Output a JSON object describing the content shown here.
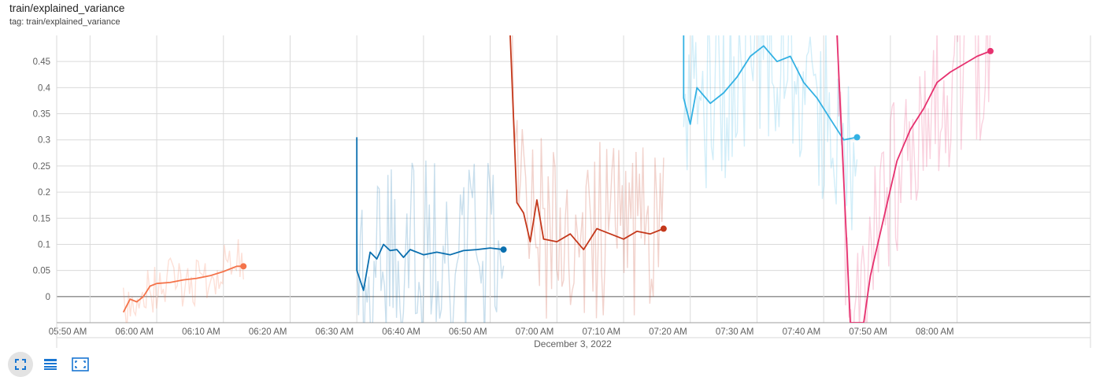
{
  "header": {
    "title": "train/explained_variance",
    "tag": "tag: train/explained_variance"
  },
  "toolbar": {
    "buttons": [
      {
        "icon": "fit-to-screen-icon",
        "active": true
      },
      {
        "icon": "data-table-icon",
        "active": false
      },
      {
        "icon": "expand-icon",
        "active": false
      }
    ]
  },
  "colors": {
    "grid": "#dadada",
    "axis": "#9e9e9e",
    "zero_line": "#8a8a8a"
  },
  "chart_data": {
    "type": "line",
    "title": "",
    "xlabel": "December 3, 2022",
    "ylabel": "",
    "grid": true,
    "legend": "none",
    "xlim": [
      "05:45 AM",
      "08:20 AM"
    ],
    "ylim": [
      -0.05,
      0.5
    ],
    "x_ticks": [
      "05:50 AM",
      "06:00 AM",
      "06:10 AM",
      "06:20 AM",
      "06:30 AM",
      "06:40 AM",
      "06:50 AM",
      "07:00 AM",
      "07:10 AM",
      "07:20 AM",
      "07:30 AM",
      "07:40 AM",
      "07:50 AM",
      "08:00 AM"
    ],
    "y_ticks": [
      "0",
      "0.05",
      "0.1",
      "0.15",
      "0.2",
      "0.25",
      "0.3",
      "0.35",
      "0.4",
      "0.45"
    ],
    "series": [
      {
        "color": "#f4734a",
        "points": [
          [
            "05:55 AM",
            -0.03
          ],
          [
            "05:56 AM",
            -0.005
          ],
          [
            "05:57 AM",
            -0.01
          ],
          [
            "05:58 AM",
            0.0
          ],
          [
            "05:59 AM",
            0.02
          ],
          [
            "06:00 AM",
            0.025
          ],
          [
            "06:02 AM",
            0.027
          ],
          [
            "06:04 AM",
            0.032
          ],
          [
            "06:06 AM",
            0.035
          ],
          [
            "06:08 AM",
            0.04
          ],
          [
            "06:10 AM",
            0.048
          ],
          [
            "06:12 AM",
            0.058
          ],
          [
            "06:13 AM",
            0.058
          ]
        ]
      },
      {
        "color": "#0a6faf",
        "points": [
          [
            "06:30 AM",
            0.305
          ],
          [
            "06:30 AM",
            0.05
          ],
          [
            "06:31 AM",
            0.012
          ],
          [
            "06:32 AM",
            0.085
          ],
          [
            "06:33 AM",
            0.072
          ],
          [
            "06:34 AM",
            0.1
          ],
          [
            "06:35 AM",
            0.088
          ],
          [
            "06:36 AM",
            0.09
          ],
          [
            "06:37 AM",
            0.075
          ],
          [
            "06:38 AM",
            0.09
          ],
          [
            "06:40 AM",
            0.08
          ],
          [
            "06:42 AM",
            0.085
          ],
          [
            "06:44 AM",
            0.08
          ],
          [
            "06:46 AM",
            0.088
          ],
          [
            "06:48 AM",
            0.09
          ],
          [
            "06:50 AM",
            0.093
          ],
          [
            "06:52 AM",
            0.09
          ]
        ]
      },
      {
        "color": "#c4381b",
        "points": [
          [
            "06:53 AM",
            0.5
          ],
          [
            "06:54 AM",
            0.18
          ],
          [
            "06:55 AM",
            0.16
          ],
          [
            "06:56 AM",
            0.105
          ],
          [
            "06:57 AM",
            0.185
          ],
          [
            "06:58 AM",
            0.11
          ],
          [
            "07:00 AM",
            0.105
          ],
          [
            "07:02 AM",
            0.12
          ],
          [
            "07:04 AM",
            0.09
          ],
          [
            "07:06 AM",
            0.13
          ],
          [
            "07:08 AM",
            0.12
          ],
          [
            "07:10 AM",
            0.11
          ],
          [
            "07:12 AM",
            0.125
          ],
          [
            "07:14 AM",
            0.12
          ],
          [
            "07:16 AM",
            0.13
          ]
        ]
      },
      {
        "color": "#33b1e3",
        "points": [
          [
            "07:19 AM",
            0.5
          ],
          [
            "07:19 AM",
            0.38
          ],
          [
            "07:20 AM",
            0.33
          ],
          [
            "07:21 AM",
            0.4
          ],
          [
            "07:23 AM",
            0.37
          ],
          [
            "07:25 AM",
            0.39
          ],
          [
            "07:27 AM",
            0.42
          ],
          [
            "07:29 AM",
            0.46
          ],
          [
            "07:31 AM",
            0.48
          ],
          [
            "07:33 AM",
            0.45
          ],
          [
            "07:35 AM",
            0.46
          ],
          [
            "07:37 AM",
            0.41
          ],
          [
            "07:39 AM",
            0.38
          ],
          [
            "07:41 AM",
            0.34
          ],
          [
            "07:43 AM",
            0.3
          ],
          [
            "07:45 AM",
            0.305
          ]
        ]
      },
      {
        "color": "#e6316f",
        "points": [
          [
            "07:42 AM",
            0.5
          ],
          [
            "07:44 AM",
            -0.05
          ],
          [
            "07:46 AM",
            -0.05
          ],
          [
            "07:47 AM",
            0.04
          ],
          [
            "07:49 AM",
            0.15
          ],
          [
            "07:51 AM",
            0.26
          ],
          [
            "07:53 AM",
            0.32
          ],
          [
            "07:55 AM",
            0.36
          ],
          [
            "07:57 AM",
            0.41
          ],
          [
            "07:59 AM",
            0.43
          ],
          [
            "08:01 AM",
            0.445
          ],
          [
            "08:03 AM",
            0.46
          ],
          [
            "08:05 AM",
            0.47
          ]
        ]
      }
    ]
  }
}
